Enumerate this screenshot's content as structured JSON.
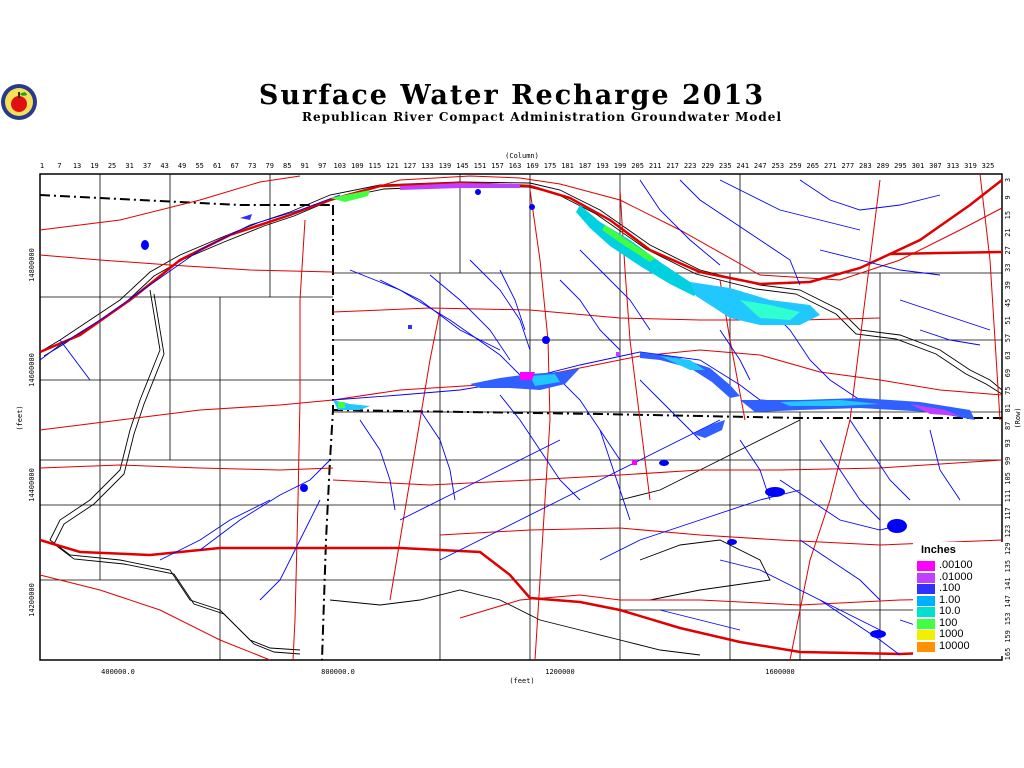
{
  "title": "Surface Water Recharge 2013",
  "subtitle": "Republican River Compact Administration Groundwater Model",
  "logo_name": "apple-seal-icon",
  "axes": {
    "top_title": "(Column)",
    "bottom_title": "(feet)",
    "left_title": "(feet)",
    "right_title": "(Row)",
    "column_ticks": [
      "1",
      "7",
      "13",
      "19",
      "25",
      "31",
      "37",
      "43",
      "49",
      "55",
      "61",
      "67",
      "73",
      "79",
      "85",
      "91",
      "97",
      "103",
      "109",
      "115",
      "121",
      "127",
      "133",
      "139",
      "145",
      "151",
      "157",
      "163",
      "169",
      "175",
      "181",
      "187",
      "193",
      "199",
      "205",
      "211",
      "217",
      "223",
      "229",
      "235",
      "241",
      "247",
      "253",
      "259",
      "265",
      "271",
      "277",
      "283",
      "289",
      "295",
      "301",
      "307",
      "313",
      "319",
      "325"
    ],
    "row_ticks": [
      "3",
      "9",
      "15",
      "21",
      "27",
      "33",
      "39",
      "45",
      "51",
      "57",
      "63",
      "69",
      "75",
      "81",
      "87",
      "93",
      "99",
      "105",
      "111",
      "117",
      "123",
      "129",
      "135",
      "141",
      "147",
      "153",
      "159",
      "165"
    ],
    "x_ticks": [
      "400000.0",
      "800000.0",
      "1200000",
      "1600000"
    ],
    "y_ticks": [
      "14800000",
      "14600000",
      "14400000",
      "14200000"
    ]
  },
  "legend": {
    "title": "Inches",
    "items": [
      {
        "label": ".00100",
        "color": "#ff00ff"
      },
      {
        "label": ".01000",
        "color": "#c040ff"
      },
      {
        "label": ".100",
        "color": "#3030ff"
      },
      {
        "label": "1.00",
        "color": "#00b0ff"
      },
      {
        "label": "10.0",
        "color": "#00e0d0"
      },
      {
        "label": "100",
        "color": "#40ff40"
      },
      {
        "label": "1000",
        "color": "#f0f000"
      },
      {
        "label": "10000",
        "color": "#ff9000"
      }
    ]
  },
  "colors": {
    "rivers": "#0000ff",
    "roads": "#e00000",
    "boundary": "#000000",
    "recharge_high": "#40ff40",
    "recharge_mid": "#00b0ff",
    "recharge_low": "#3030ff"
  }
}
